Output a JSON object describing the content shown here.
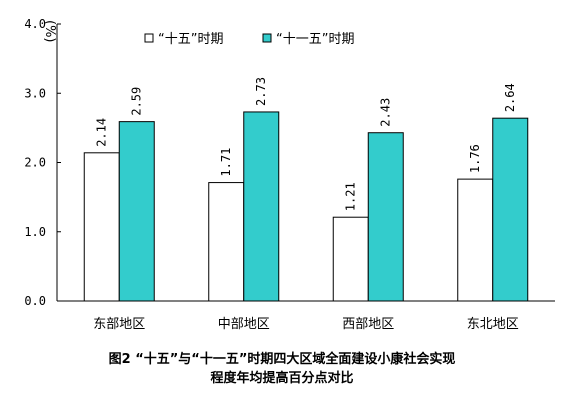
{
  "chart_data": {
    "type": "bar",
    "unit": "(%)",
    "categories": [
      "东部地区",
      "中部地区",
      "西部地区",
      "东北地区"
    ],
    "series": [
      {
        "name": "“十五”时期",
        "values": [
          2.14,
          1.71,
          1.21,
          1.76
        ],
        "color": "#ffffff"
      },
      {
        "name": "“十一五”时期",
        "values": [
          2.59,
          2.73,
          2.43,
          2.64
        ],
        "color": "#33cccc"
      }
    ],
    "ylim": [
      0,
      4.0
    ],
    "yticks": [
      "0.0",
      "1.0",
      "2.0",
      "3.0",
      "4.0"
    ],
    "legend": "top",
    "grid": false
  },
  "caption": {
    "line1": "图2  “十五”与“十一五”时期四大区域全面建设小康社会实现",
    "line2": "程度年均提高百分点对比"
  }
}
